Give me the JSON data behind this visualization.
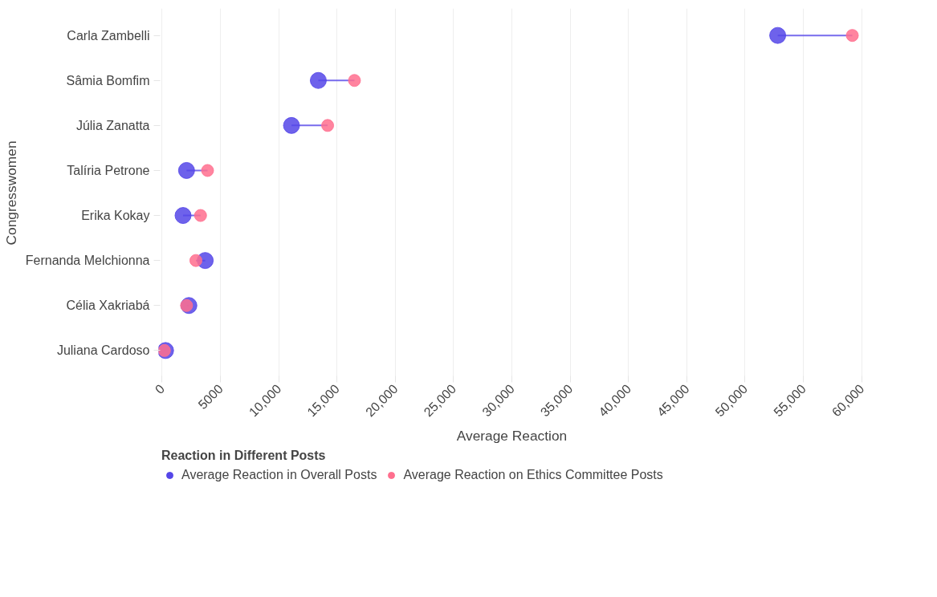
{
  "chart_data": {
    "type": "scatter",
    "orientation": "horizontal",
    "xlabel": "Average Reaction",
    "ylabel": "Congresswomen",
    "legend_title": "Reaction in Different Posts",
    "categories": [
      "Carla Zambelli",
      "Sâmia Bomfim",
      "Júlia Zanatta",
      "Talíria Petrone",
      "Erika Kokay",
      "Fernanda Melchionna",
      "Célia Xakriabá",
      "Juliana Cardoso"
    ],
    "series": [
      {
        "name": "Average Reaction in Overall Posts",
        "color": "#5546e8",
        "values": [
          52800,
          13400,
          11100,
          2100,
          1800,
          3700,
          2300,
          300
        ]
      },
      {
        "name": "Average Reaction on Ethics Committee Posts",
        "color": "#ff6f8e",
        "values": [
          59200,
          16500,
          14200,
          3900,
          3300,
          2900,
          2100,
          200
        ]
      }
    ],
    "xlim": [
      -300,
      60300
    ],
    "xticks": [
      0,
      {
        "value": 5000,
        "label": "5000"
      },
      {
        "value": 10000,
        "label": "10,000"
      },
      {
        "value": 15000,
        "label": "15,000"
      },
      {
        "value": 20000,
        "label": "20,000"
      },
      {
        "value": 25000,
        "label": "25,000"
      },
      {
        "value": 30000,
        "label": "30,000"
      },
      {
        "value": 35000,
        "label": "35,000"
      },
      {
        "value": 40000,
        "label": "40,000"
      },
      {
        "value": 45000,
        "label": "45,000"
      },
      {
        "value": 50000,
        "label": "50,000"
      },
      {
        "value": 55000,
        "label": "55,000"
      },
      {
        "value": 60000,
        "label": "60,000"
      }
    ],
    "grid": "x",
    "legend": "bottom",
    "marker": "circle"
  }
}
